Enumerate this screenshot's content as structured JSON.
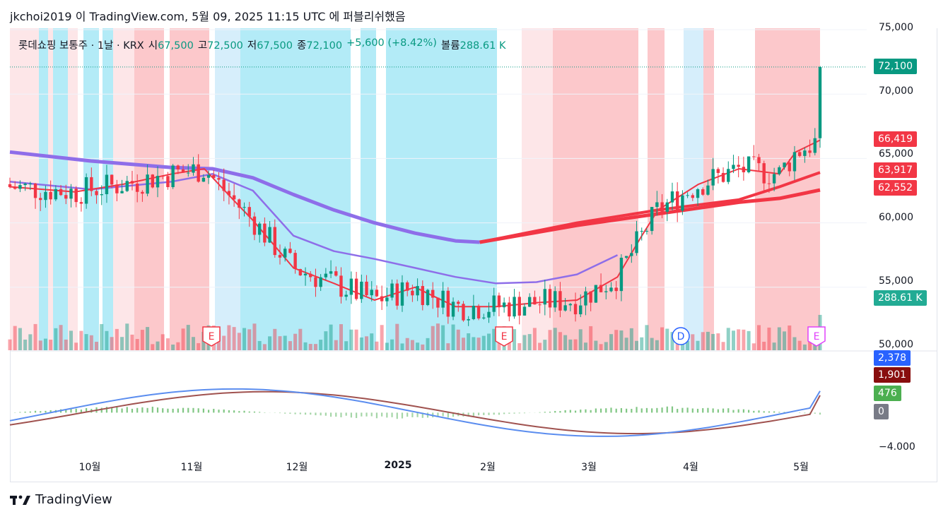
{
  "header": {
    "publish_line": "jkchoi2019 이 TradingView.com, 5월 09, 2025 11:15 UTC 에 퍼블리쉬했음"
  },
  "legend": {
    "symbol": "롯데쇼핑 보통주 · 1날 · KRX",
    "open_label": "시",
    "open": "67,500",
    "high_label": "고",
    "high": "72,500",
    "low_label": "저",
    "low": "67,500",
    "close_label": "종",
    "close": "72,100",
    "change": "+5,600 (+8.42%)",
    "volume_label": "볼륨",
    "volume": "288.61 K"
  },
  "price_axis": {
    "ticks": [
      "75,000",
      "70,000",
      "65,000",
      "60,000",
      "55,000",
      "50,000"
    ]
  },
  "price_badges": [
    {
      "text": "72,100",
      "color": "#089981"
    },
    {
      "text": "66,419",
      "color": "#f23645"
    },
    {
      "text": "63,917",
      "color": "#f23645"
    },
    {
      "text": "62,552",
      "color": "#f23645"
    },
    {
      "text": "288.61 K",
      "color": "#22ab94"
    }
  ],
  "macd_axis": {
    "tick_bottom": "−4.000",
    "badges": [
      {
        "text": "2,378",
        "color": "#2962ff"
      },
      {
        "text": "1,901",
        "color": "#880e0e"
      },
      {
        "text": "476",
        "color": "#4caf50"
      },
      {
        "text": "0",
        "color": "#787b86"
      }
    ]
  },
  "time_axis": {
    "labels": [
      "10월",
      "11월",
      "12월",
      "2025",
      "2월",
      "3월",
      "4월",
      "5월"
    ]
  },
  "event_markers": [
    "E",
    "E",
    "D",
    "E"
  ],
  "footer": {
    "brand": "TradingView"
  },
  "chart_data": {
    "type": "candlestick",
    "symbol": "롯데쇼핑 보통주",
    "interval": "1날",
    "exchange": "KRX",
    "ylim": [
      50000,
      75000
    ],
    "x_range": [
      "2024-09",
      "2025-05"
    ],
    "last_close": 72100,
    "moving_averages": [
      {
        "value": 66419,
        "color": "#f23645"
      },
      {
        "value": 63917,
        "color": "#f23645"
      },
      {
        "value": 62552,
        "color": "#f23645"
      }
    ],
    "ma_path_approx": {
      "fast_red": [
        [
          0.0,
          62800
        ],
        [
          0.08,
          62400
        ],
        [
          0.14,
          63000
        ],
        [
          0.2,
          63800
        ],
        [
          0.24,
          64200
        ],
        [
          0.28,
          61500
        ],
        [
          0.3,
          60200
        ],
        [
          0.35,
          56500
        ],
        [
          0.4,
          55300
        ],
        [
          0.45,
          54000
        ],
        [
          0.5,
          55000
        ],
        [
          0.55,
          53500
        ],
        [
          0.6,
          53500
        ],
        [
          0.65,
          53800
        ],
        [
          0.7,
          54000
        ],
        [
          0.75,
          55800
        ],
        [
          0.78,
          59000
        ],
        [
          0.8,
          61000
        ],
        [
          0.85,
          63000
        ],
        [
          0.9,
          64200
        ],
        [
          0.95,
          63800
        ],
        [
          0.97,
          65500
        ],
        [
          1.0,
          66419
        ]
      ],
      "purple_slow": [
        [
          0.0,
          65500
        ],
        [
          0.1,
          64800
        ],
        [
          0.2,
          64300
        ],
        [
          0.25,
          64200
        ],
        [
          0.3,
          63500
        ],
        [
          0.35,
          62200
        ],
        [
          0.4,
          61000
        ],
        [
          0.45,
          60000
        ],
        [
          0.5,
          59200
        ],
        [
          0.55,
          58600
        ],
        [
          0.58,
          58500
        ]
      ],
      "purple_mid": [
        [
          0.0,
          63200
        ],
        [
          0.1,
          62600
        ],
        [
          0.2,
          63200
        ],
        [
          0.25,
          63800
        ],
        [
          0.3,
          62500
        ],
        [
          0.35,
          59000
        ],
        [
          0.4,
          57800
        ],
        [
          0.45,
          57200
        ],
        [
          0.5,
          56500
        ],
        [
          0.55,
          55800
        ],
        [
          0.6,
          55300
        ],
        [
          0.65,
          55400
        ],
        [
          0.7,
          56000
        ],
        [
          0.75,
          57500
        ]
      ]
    },
    "macd": {
      "macd_line": 2378,
      "signal_line": 1901,
      "histogram": 476,
      "zero": 0,
      "ylim": [
        -4000,
        6000
      ]
    },
    "current_volume": "288.61 K"
  }
}
